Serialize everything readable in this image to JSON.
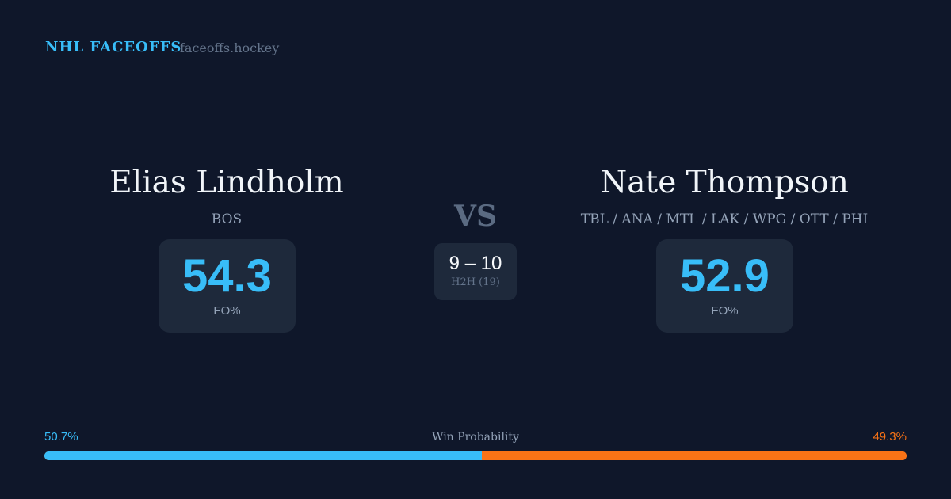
{
  "header": {
    "brand": "NHL FACEOFFS",
    "site": "faceoffs.hockey"
  },
  "left": {
    "name": "Elias Lindholm",
    "teams": "BOS",
    "fo_pct": "54.3",
    "fo_label": "FO%"
  },
  "right": {
    "name": "Nate Thompson",
    "teams": "TBL / ANA / MTL / LAK / WPG / OTT / PHI",
    "fo_pct": "52.9",
    "fo_label": "FO%"
  },
  "center": {
    "vs": "VS",
    "score": "9 – 10",
    "h2h": "H2H (19)"
  },
  "probability": {
    "label": "Win Probability",
    "left_text": "50.7%",
    "right_text": "49.3%",
    "left_value": 50.7,
    "right_value": 49.3,
    "left_color": "#38bdf8",
    "right_color": "#f97316"
  }
}
